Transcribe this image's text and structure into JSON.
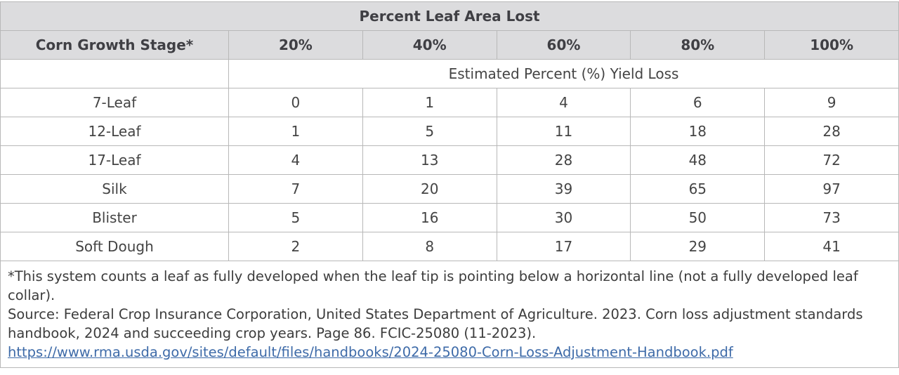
{
  "table": {
    "super_header": "Percent Leaf Area Lost",
    "stage_header": "Corn Growth Stage*",
    "columns": [
      "20%",
      "40%",
      "60%",
      "80%",
      "100%"
    ],
    "subheader": "Estimated Percent (%) Yield Loss",
    "rows": [
      {
        "stage": "7-Leaf",
        "values": [
          "0",
          "1",
          "4",
          "6",
          "9"
        ]
      },
      {
        "stage": "12-Leaf",
        "values": [
          "1",
          "5",
          "11",
          "18",
          "28"
        ]
      },
      {
        "stage": "17-Leaf",
        "values": [
          "4",
          "13",
          "28",
          "48",
          "72"
        ]
      },
      {
        "stage": "Silk",
        "values": [
          "7",
          "20",
          "39",
          "65",
          "97"
        ]
      },
      {
        "stage": "Blister",
        "values": [
          "5",
          "16",
          "30",
          "50",
          "73"
        ]
      },
      {
        "stage": "Soft Dough",
        "values": [
          "2",
          "8",
          "17",
          "29",
          "41"
        ]
      }
    ]
  },
  "notes": {
    "footnote": "*This system counts a leaf as fully developed when the leaf tip is pointing below a horizontal line (not a fully developed leaf collar).",
    "source_text": "Source: Federal Crop Insurance Corporation, United States Department of Agriculture. 2023. Corn loss adjustment standards handbook, 2024 and succeeding crop years. Page 86. FCIC-25080 (11-2023). ",
    "source_link": "https://www.rma.usda.gov/sites/default/files/handbooks/2024-25080-Corn-Loss-Adjustment-Handbook.pdf"
  },
  "colors": {
    "header_bg": "#dcdcde",
    "border": "#b8b8b8",
    "link": "#3d6aa8"
  }
}
